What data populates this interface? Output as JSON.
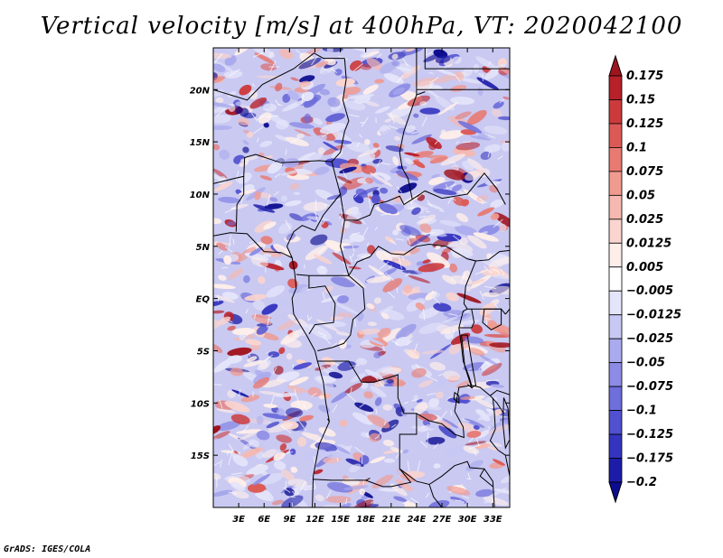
{
  "title": "Vertical velocity [m/s] at 400hPa, VT: 2020042100",
  "footer": "GrADS: IGES/COLA",
  "map": {
    "lon_range": [
      0,
      35
    ],
    "lat_range": [
      -20,
      24
    ],
    "lat_ticks": [
      {
        "value": 20,
        "label": "20N"
      },
      {
        "value": 15,
        "label": "15N"
      },
      {
        "value": 10,
        "label": "10N"
      },
      {
        "value": 5,
        "label": "5N"
      },
      {
        "value": 0,
        "label": "EQ"
      },
      {
        "value": -5,
        "label": "5S"
      },
      {
        "value": -10,
        "label": "10S"
      },
      {
        "value": -15,
        "label": "15S"
      }
    ],
    "lon_ticks": [
      {
        "value": 3,
        "label": "3E"
      },
      {
        "value": 6,
        "label": "6E"
      },
      {
        "value": 9,
        "label": "9E"
      },
      {
        "value": 12,
        "label": "12E"
      },
      {
        "value": 15,
        "label": "15E"
      },
      {
        "value": 18,
        "label": "18E"
      },
      {
        "value": 21,
        "label": "21E"
      },
      {
        "value": 24,
        "label": "24E"
      },
      {
        "value": 27,
        "label": "27E"
      },
      {
        "value": 30,
        "label": "30E"
      },
      {
        "value": 33,
        "label": "33E"
      }
    ]
  },
  "colorbar": {
    "labels": [
      "0.175",
      "0.15",
      "0.125",
      "0.1",
      "0.075",
      "0.05",
      "0.025",
      "0.0125",
      "0.005",
      "−0.005",
      "−0.0125",
      "−0.025",
      "−0.05",
      "−0.075",
      "−0.1",
      "−0.125",
      "−0.175",
      "−0.2"
    ],
    "colors": [
      "#a0141e",
      "#b8202a",
      "#cc3a3c",
      "#dc5a56",
      "#e87a72",
      "#f09a90",
      "#f6b8b0",
      "#fad4ce",
      "#fdeeea",
      "#ffffff",
      "#e4e4fa",
      "#c8c8f4",
      "#aaaaee",
      "#8c8ce6",
      "#6e6edc",
      "#5050d0",
      "#3434c0",
      "#1c1ca8",
      "#0c0c90"
    ]
  }
}
